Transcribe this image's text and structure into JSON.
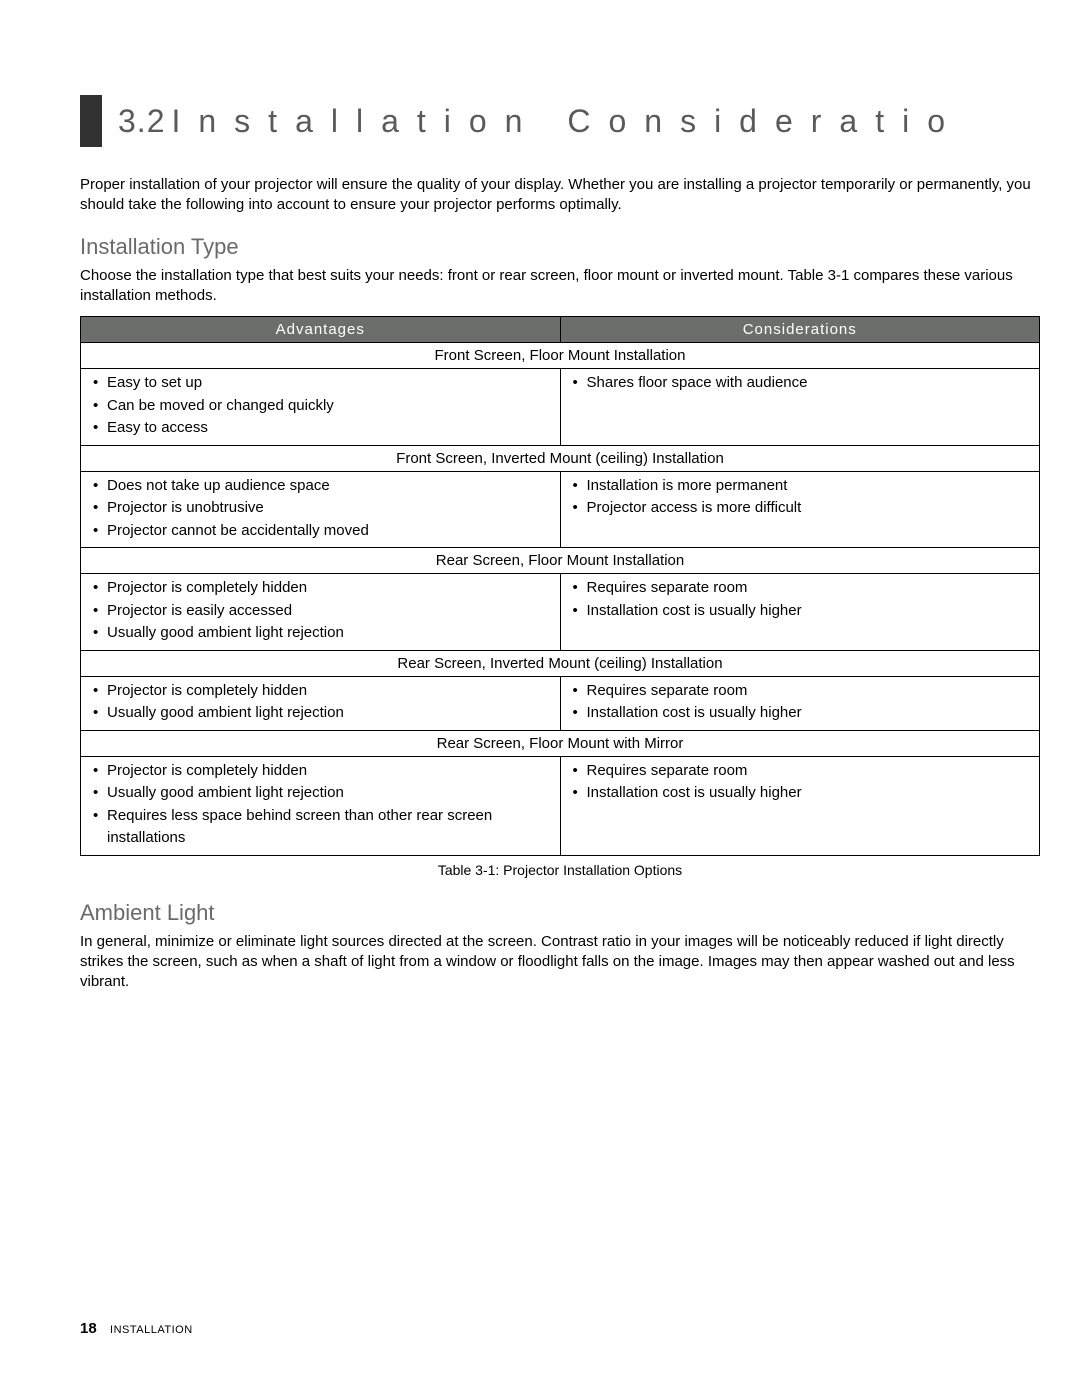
{
  "colors": {
    "bar": "#313131",
    "header_bg": "#6b6f6c",
    "header_text": "#ffffff",
    "heading_gray": "#5a5a5a",
    "subheading_gray": "#6a6a6a",
    "text": "#000000",
    "border": "#000000",
    "background": "#ffffff"
  },
  "section": {
    "number": "3.2",
    "title": "Installation Consideratio"
  },
  "intro": "Proper installation of your projector will ensure the quality of your display. Whether you are installing a projector temporarily or permanently, you should take the following into account to ensure your projector performs optimally.",
  "installation_type": {
    "heading": "Installation Type",
    "desc": "Choose the installation type that best suits your needs: front or rear screen, floor mount or inverted mount. Table 3-1 compares these various installation methods."
  },
  "table": {
    "head_left": "Advantages",
    "head_right": "Considerations",
    "caption": "Table 3-1: Projector Installation Options",
    "groups": [
      {
        "category": "Front Screen, Floor Mount Installation",
        "advantages": [
          "Easy to set up",
          "Can be moved or changed quickly",
          "Easy to access"
        ],
        "considerations": [
          "Shares floor space with audience"
        ]
      },
      {
        "category": "Front Screen, Inverted Mount (ceiling) Installation",
        "advantages": [
          "Does not take up audience space",
          "Projector is unobtrusive",
          "Projector cannot be accidentally moved"
        ],
        "considerations": [
          "Installation is more permanent",
          "Projector access is more difficult"
        ]
      },
      {
        "category": "Rear Screen, Floor Mount Installation",
        "advantages": [
          "Projector is completely hidden",
          "Projector is easily accessed",
          "Usually good ambient light rejection"
        ],
        "considerations": [
          "Requires separate room",
          "Installation cost is usually higher"
        ]
      },
      {
        "category": "Rear Screen, Inverted Mount (ceiling) Installation",
        "advantages": [
          "Projector is completely hidden",
          "Usually good ambient light rejection"
        ],
        "considerations": [
          "Requires separate room",
          "Installation cost is usually higher"
        ]
      },
      {
        "category": "Rear Screen, Floor Mount with Mirror",
        "advantages": [
          "Projector is completely hidden",
          "Usually good ambient light rejection",
          "Requires less space behind screen than other rear screen installations"
        ],
        "considerations": [
          "Requires separate room",
          "Installation cost is usually higher"
        ]
      }
    ]
  },
  "ambient": {
    "heading": "Ambient Light",
    "desc": "In general, minimize or eliminate light sources directed at the screen. Contrast ratio in your images will be noticeably reduced if light directly strikes the screen, such as when a shaft of light from a window or floodlight falls on the image. Images may then appear washed out and less vibrant."
  },
  "footer": {
    "page_number": "18",
    "section": "INSTALLATION"
  }
}
